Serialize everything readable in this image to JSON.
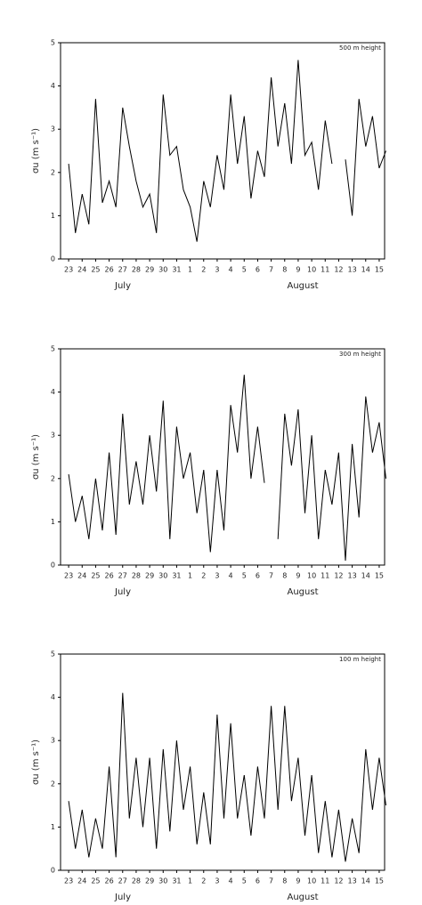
{
  "chart_data": [
    {
      "type": "line",
      "annotation": "500 m height",
      "y_label": "σu (m s⁻¹)",
      "month_labels": [
        "July",
        "August"
      ],
      "color": "#000000",
      "xlim": [
        -0.6,
        23.4
      ],
      "ylim": [
        0,
        5
      ],
      "yticks": [
        0,
        1,
        2,
        3,
        4,
        5
      ],
      "xticks": [
        {
          "value": 0,
          "label": "23"
        },
        {
          "value": 1,
          "label": "24"
        },
        {
          "value": 2,
          "label": "25"
        },
        {
          "value": 3,
          "label": "26"
        },
        {
          "value": 4,
          "label": "27"
        },
        {
          "value": 5,
          "label": "28"
        },
        {
          "value": 6,
          "label": "29"
        },
        {
          "value": 7,
          "label": "30"
        },
        {
          "value": 8,
          "label": "31"
        },
        {
          "value": 9,
          "label": "1"
        },
        {
          "value": 10,
          "label": "2"
        },
        {
          "value": 11,
          "label": "3"
        },
        {
          "value": 12,
          "label": "4"
        },
        {
          "value": 13,
          "label": "5"
        },
        {
          "value": 14,
          "label": "6"
        },
        {
          "value": 15,
          "label": "7"
        },
        {
          "value": 16,
          "label": "8"
        },
        {
          "value": 17,
          "label": "9"
        },
        {
          "value": 18,
          "label": "10"
        },
        {
          "value": 19,
          "label": "11"
        },
        {
          "value": 20,
          "label": "12"
        },
        {
          "value": 21,
          "label": "13"
        },
        {
          "value": 22,
          "label": "14"
        },
        {
          "value": 23,
          "label": "15"
        }
      ],
      "x": [
        0,
        0.5,
        1,
        1.5,
        2,
        2.5,
        3,
        3.5,
        4,
        4.5,
        5,
        5.5,
        6,
        6.5,
        7,
        7.5,
        8,
        8.5,
        9,
        9.5,
        10,
        10.5,
        11,
        11.5,
        12,
        12.5,
        13,
        13.5,
        14,
        14.5,
        15,
        15.5,
        16,
        16.5,
        17,
        17.5,
        18,
        18.5,
        19,
        19.5,
        20,
        20.5,
        21,
        21.5,
        22,
        22.5,
        23,
        23.5
      ],
      "values": [
        2.2,
        0.6,
        1.5,
        0.8,
        3.7,
        1.3,
        1.8,
        1.2,
        3.5,
        2.6,
        1.8,
        1.2,
        1.5,
        0.6,
        3.8,
        2.4,
        2.6,
        1.6,
        1.2,
        0.4,
        1.8,
        1.2,
        2.4,
        1.6,
        3.8,
        2.2,
        3.3,
        1.4,
        2.5,
        1.9,
        4.2,
        2.6,
        3.6,
        2.2,
        4.6,
        2.4,
        2.7,
        1.6,
        3.2,
        2.2,
        null,
        2.3,
        1.0,
        3.7,
        2.6,
        3.3,
        2.1,
        2.5
      ]
    },
    {
      "type": "line",
      "annotation": "300 m height",
      "y_label": "σu (m s⁻¹)",
      "month_labels": [
        "July",
        "August"
      ],
      "color": "#000000",
      "xlim": [
        -0.6,
        23.4
      ],
      "ylim": [
        0,
        5
      ],
      "yticks": [
        0,
        1,
        2,
        3,
        4,
        5
      ],
      "xticks": [
        {
          "value": 0,
          "label": "23"
        },
        {
          "value": 1,
          "label": "24"
        },
        {
          "value": 2,
          "label": "25"
        },
        {
          "value": 3,
          "label": "26"
        },
        {
          "value": 4,
          "label": "27"
        },
        {
          "value": 5,
          "label": "28"
        },
        {
          "value": 6,
          "label": "29"
        },
        {
          "value": 7,
          "label": "30"
        },
        {
          "value": 8,
          "label": "31"
        },
        {
          "value": 9,
          "label": "1"
        },
        {
          "value": 10,
          "label": "2"
        },
        {
          "value": 11,
          "label": "3"
        },
        {
          "value": 12,
          "label": "4"
        },
        {
          "value": 13,
          "label": "5"
        },
        {
          "value": 14,
          "label": "6"
        },
        {
          "value": 15,
          "label": "7"
        },
        {
          "value": 16,
          "label": "8"
        },
        {
          "value": 17,
          "label": "9"
        },
        {
          "value": 18,
          "label": "10"
        },
        {
          "value": 19,
          "label": "11"
        },
        {
          "value": 20,
          "label": "12"
        },
        {
          "value": 21,
          "label": "13"
        },
        {
          "value": 22,
          "label": "14"
        },
        {
          "value": 23,
          "label": "15"
        }
      ],
      "x": [
        0,
        0.5,
        1,
        1.5,
        2,
        2.5,
        3,
        3.5,
        4,
        4.5,
        5,
        5.5,
        6,
        6.5,
        7,
        7.5,
        8,
        8.5,
        9,
        9.5,
        10,
        10.5,
        11,
        11.5,
        12,
        12.5,
        13,
        13.5,
        14,
        14.5,
        15,
        15.5,
        16,
        16.5,
        17,
        17.5,
        18,
        18.5,
        19,
        19.5,
        20,
        20.5,
        21,
        21.5,
        22,
        22.5,
        23,
        23.5
      ],
      "values": [
        2.1,
        1.0,
        1.6,
        0.6,
        2.0,
        0.8,
        2.6,
        0.7,
        3.5,
        1.4,
        2.4,
        1.4,
        3.0,
        1.7,
        3.8,
        0.6,
        3.2,
        2.0,
        2.6,
        1.2,
        2.2,
        0.3,
        2.2,
        0.8,
        3.7,
        2.6,
        4.4,
        2.0,
        3.2,
        1.9,
        null,
        0.6,
        3.5,
        2.3,
        3.6,
        1.2,
        3.0,
        0.6,
        2.2,
        1.4,
        2.6,
        0.1,
        2.8,
        1.1,
        3.9,
        2.6,
        3.3,
        2.0
      ]
    },
    {
      "type": "line",
      "annotation": "100 m height",
      "y_label": "σu (m s⁻¹)",
      "month_labels": [
        "July",
        "August"
      ],
      "color": "#000000",
      "xlim": [
        -0.6,
        23.4
      ],
      "ylim": [
        0,
        5
      ],
      "yticks": [
        0,
        1,
        2,
        3,
        4,
        5
      ],
      "xticks": [
        {
          "value": 0,
          "label": "23"
        },
        {
          "value": 1,
          "label": "24"
        },
        {
          "value": 2,
          "label": "25"
        },
        {
          "value": 3,
          "label": "26"
        },
        {
          "value": 4,
          "label": "27"
        },
        {
          "value": 5,
          "label": "28"
        },
        {
          "value": 6,
          "label": "29"
        },
        {
          "value": 7,
          "label": "30"
        },
        {
          "value": 8,
          "label": "31"
        },
        {
          "value": 9,
          "label": "1"
        },
        {
          "value": 10,
          "label": "2"
        },
        {
          "value": 11,
          "label": "3"
        },
        {
          "value": 12,
          "label": "4"
        },
        {
          "value": 13,
          "label": "5"
        },
        {
          "value": 14,
          "label": "6"
        },
        {
          "value": 15,
          "label": "7"
        },
        {
          "value": 16,
          "label": "8"
        },
        {
          "value": 17,
          "label": "9"
        },
        {
          "value": 18,
          "label": "10"
        },
        {
          "value": 19,
          "label": "11"
        },
        {
          "value": 20,
          "label": "12"
        },
        {
          "value": 21,
          "label": "13"
        },
        {
          "value": 22,
          "label": "14"
        },
        {
          "value": 23,
          "label": "15"
        }
      ],
      "x": [
        0,
        0.5,
        1,
        1.5,
        2,
        2.5,
        3,
        3.5,
        4,
        4.5,
        5,
        5.5,
        6,
        6.5,
        7,
        7.5,
        8,
        8.5,
        9,
        9.5,
        10,
        10.5,
        11,
        11.5,
        12,
        12.5,
        13,
        13.5,
        14,
        14.5,
        15,
        15.5,
        16,
        16.5,
        17,
        17.5,
        18,
        18.5,
        19,
        19.5,
        20,
        20.5,
        21,
        21.5,
        22,
        22.5,
        23,
        23.5
      ],
      "values": [
        1.6,
        0.5,
        1.4,
        0.3,
        1.2,
        0.5,
        2.4,
        0.3,
        4.1,
        1.2,
        2.6,
        1.0,
        2.6,
        0.5,
        2.8,
        0.9,
        3.0,
        1.4,
        2.4,
        0.6,
        1.8,
        0.6,
        3.6,
        1.2,
        3.4,
        1.2,
        2.2,
        0.8,
        2.4,
        1.2,
        3.8,
        1.4,
        3.8,
        1.6,
        2.6,
        0.8,
        2.2,
        0.4,
        1.6,
        0.3,
        1.4,
        0.2,
        1.2,
        0.4,
        2.8,
        1.4,
        2.6,
        1.5
      ]
    }
  ]
}
